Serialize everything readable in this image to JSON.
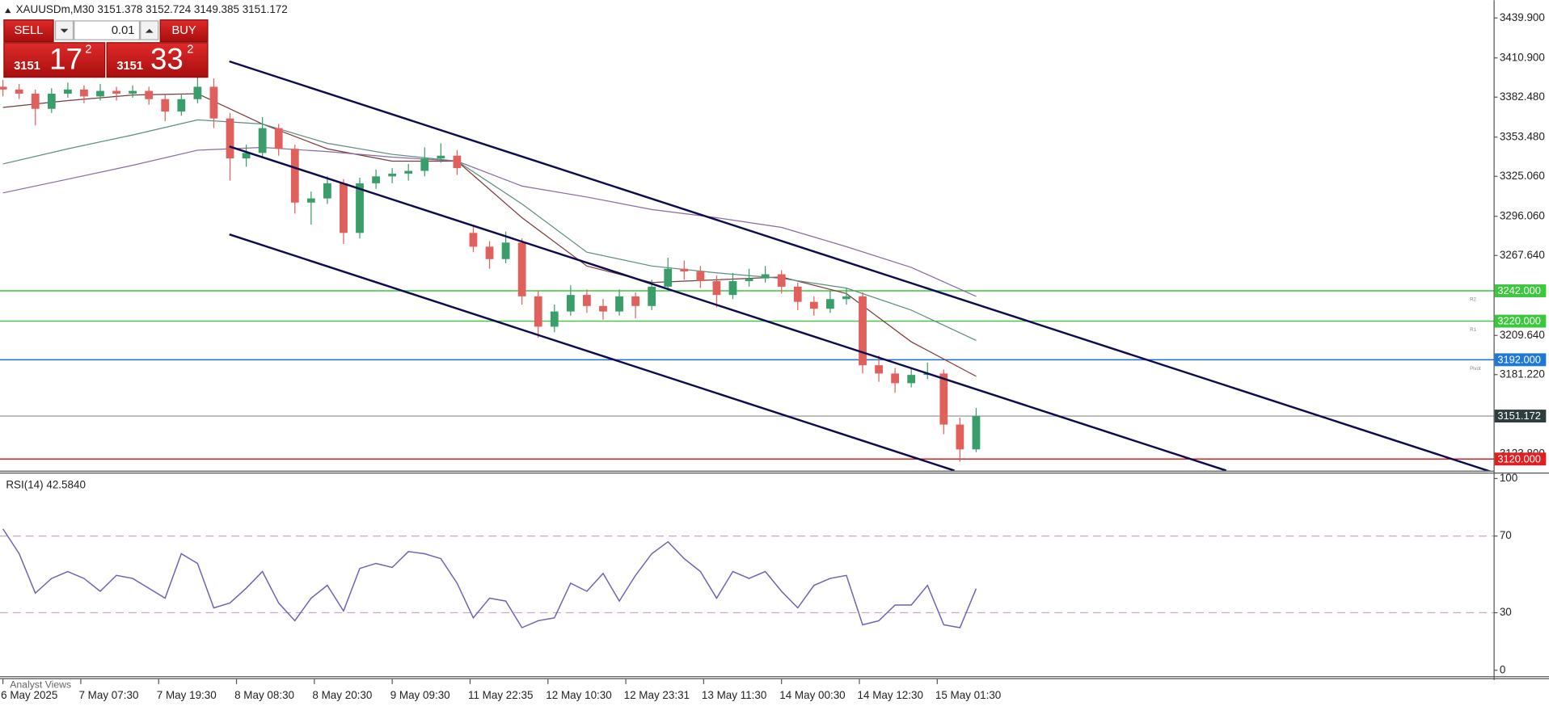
{
  "chart_data": [
    {
      "type": "candlestick",
      "title": "XAUUSDm,M30  3151.378 3152.724 3149.385 3151.172",
      "up_color": "#3a9e6a",
      "down_color": "#e0605c",
      "xlim": [
        -0.9,
        459.5
      ],
      "ylim": [
        3111.6,
        3452.8
      ],
      "yticks": [
        {
          "value": 3439.9,
          "label": "3439.900"
        },
        {
          "value": 3410.9,
          "label": "3410.900"
        },
        {
          "value": 3382.48,
          "label": "3382.480"
        },
        {
          "value": 3353.48,
          "label": "3353.480"
        },
        {
          "value": 3325.06,
          "label": "3325.060"
        },
        {
          "value": 3296.06,
          "label": "3296.060"
        },
        {
          "value": 3267.64,
          "label": "3267.640"
        },
        {
          "value": 3209.64,
          "label": "3209.640"
        },
        {
          "value": 3181.22,
          "label": "3181.220"
        },
        {
          "value": 3123.8,
          "label": "3123.800"
        }
      ],
      "x": [
        0,
        5,
        10,
        15,
        20,
        25,
        30,
        35,
        40,
        45,
        50,
        55,
        60,
        65,
        70,
        75,
        80,
        85,
        90,
        95,
        100,
        105,
        110,
        115,
        120,
        125,
        130,
        135,
        140,
        145,
        150,
        155,
        160,
        165,
        170,
        175,
        180,
        185,
        190,
        195,
        200,
        205,
        210,
        215,
        220,
        225,
        230,
        235,
        240,
        245,
        250,
        255,
        260,
        265,
        270,
        275,
        280,
        285,
        290,
        295,
        300
      ],
      "candles": [
        [
          3390,
          3395,
          3383,
          3388
        ],
        [
          3388,
          3392,
          3381,
          3385
        ],
        [
          3385,
          3388,
          3362,
          3374
        ],
        [
          3374,
          3389,
          3371,
          3385
        ],
        [
          3385,
          3393,
          3382,
          3388
        ],
        [
          3388,
          3391,
          3378,
          3383
        ],
        [
          3383,
          3392,
          3380,
          3387
        ],
        [
          3387,
          3390,
          3380,
          3385
        ],
        [
          3385,
          3391,
          3382,
          3387
        ],
        [
          3387,
          3390,
          3377,
          3381
        ],
        [
          3381,
          3384,
          3365,
          3372
        ],
        [
          3372,
          3385,
          3369,
          3381
        ],
        [
          3381,
          3397,
          3378,
          3390
        ],
        [
          3390,
          3396,
          3360,
          3367
        ],
        [
          3367,
          3371,
          3322,
          3338
        ],
        [
          3338,
          3348,
          3332,
          3342
        ],
        [
          3342,
          3368,
          3339,
          3360
        ],
        [
          3360,
          3363,
          3340,
          3345
        ],
        [
          3345,
          3348,
          3298,
          3306
        ],
        [
          3306,
          3314,
          3290,
          3309
        ],
        [
          3309,
          3325,
          3305,
          3320
        ],
        [
          3320,
          3323,
          3276,
          3284
        ],
        [
          3284,
          3324,
          3280,
          3320
        ],
        [
          3320,
          3330,
          3316,
          3325
        ],
        [
          3325,
          3331,
          3320,
          3327
        ],
        [
          3327,
          3334,
          3322,
          3329
        ],
        [
          3329,
          3346,
          3325,
          3338
        ],
        [
          3338,
          3349,
          3335,
          3340
        ],
        [
          3340,
          3344,
          3326,
          3331
        ],
        [
          3284,
          3290,
          3270,
          3274
        ],
        [
          3274,
          3278,
          3258,
          3265
        ],
        [
          3265,
          3285,
          3262,
          3277
        ],
        [
          3277,
          3280,
          3232,
          3238
        ],
        [
          3238,
          3242,
          3208,
          3216
        ],
        [
          3216,
          3232,
          3212,
          3227
        ],
        [
          3227,
          3246,
          3224,
          3239
        ],
        [
          3239,
          3243,
          3226,
          3231
        ],
        [
          3231,
          3236,
          3221,
          3227
        ],
        [
          3227,
          3243,
          3224,
          3238
        ],
        [
          3238,
          3241,
          3222,
          3231
        ],
        [
          3231,
          3250,
          3228,
          3245
        ],
        [
          3245,
          3266,
          3242,
          3258
        ],
        [
          3258,
          3264,
          3250,
          3256
        ],
        [
          3256,
          3260,
          3244,
          3249
        ],
        [
          3249,
          3253,
          3230,
          3239
        ],
        [
          3239,
          3255,
          3236,
          3249
        ],
        [
          3249,
          3258,
          3245,
          3251
        ],
        [
          3251,
          3260,
          3248,
          3254
        ],
        [
          3254,
          3257,
          3240,
          3245
        ],
        [
          3245,
          3248,
          3228,
          3234
        ],
        [
          3234,
          3238,
          3224,
          3229
        ],
        [
          3229,
          3242,
          3226,
          3236
        ],
        [
          3236,
          3244,
          3232,
          3238
        ],
        [
          3238,
          3241,
          3182,
          3188
        ],
        [
          3188,
          3195,
          3176,
          3182
        ],
        [
          3182,
          3186,
          3168,
          3175
        ],
        [
          3175,
          3186,
          3172,
          3181
        ],
        [
          3181,
          3190,
          3178,
          3182
        ],
        [
          3182,
          3185,
          3138,
          3145
        ],
        [
          3145,
          3150,
          3118,
          3127
        ],
        [
          3127,
          3157,
          3125,
          3151.172
        ]
      ],
      "moving_averages": [
        {
          "color": "#7a3b3b",
          "x": [
            0,
            20,
            40,
            60,
            80,
            100,
            120,
            140,
            160,
            180,
            200,
            220,
            240,
            260,
            280,
            300
          ],
          "values": [
            3375,
            3380,
            3384,
            3385,
            3363,
            3345,
            3336,
            3336,
            3295,
            3260,
            3248,
            3250,
            3252,
            3240,
            3205,
            3180
          ]
        },
        {
          "color": "#5f8c7f",
          "x": [
            0,
            20,
            40,
            60,
            80,
            100,
            120,
            140,
            160,
            180,
            200,
            220,
            240,
            260,
            280,
            300
          ],
          "values": [
            3334,
            3345,
            3355,
            3366,
            3363,
            3349,
            3341,
            3336,
            3305,
            3270,
            3260,
            3255,
            3251,
            3244,
            3228,
            3206
          ]
        },
        {
          "color": "#8a6aa0",
          "x": [
            0,
            20,
            40,
            60,
            80,
            100,
            120,
            140,
            160,
            180,
            200,
            220,
            240,
            260,
            280,
            300
          ],
          "values": [
            3313,
            3323,
            3333,
            3344,
            3346,
            3343,
            3339,
            3336,
            3318,
            3310,
            3301,
            3295,
            3288,
            3274,
            3259,
            3238
          ]
        }
      ],
      "trendline_color": "#0b0b4e",
      "trendlines": [
        {
          "x": [
            69.8,
            459.5
          ],
          "values": [
            3408.4,
            3110.2
          ]
        },
        {
          "x": [
            69.8,
            377.1
          ],
          "values": [
            3346.7,
            3111.6
          ]
        },
        {
          "x": [
            69.8,
            293.3
          ],
          "values": [
            3282.9,
            3111.6
          ]
        }
      ],
      "levels": [
        {
          "value": 3242,
          "label": "3242.000",
          "tag": "R2",
          "color": "#3cc83c",
          "label_color": "#3cc83c"
        },
        {
          "value": 3220,
          "label": "3220.000",
          "tag": "R1",
          "color": "#3cc83c",
          "label_color": "#3cc83c"
        },
        {
          "value": 3192,
          "label": "3192.000",
          "tag": "Pivot",
          "color": "#1f6fc4",
          "label_color": "#1f78d8"
        },
        {
          "value": 3151.172,
          "label": "3151.172",
          "color": "#a0a0a0",
          "label_color": "#2e3d3d"
        },
        {
          "value": 3120,
          "label": "3120.000",
          "color": "#e02020",
          "label_color": "#e02020"
        }
      ]
    },
    {
      "type": "line",
      "title": "RSI(14) 42.5840",
      "color": "#6f5fb5",
      "level_color": "#c8a8c8",
      "levels": [
        70,
        30
      ],
      "xlim": [
        -0.9,
        459.5
      ],
      "ylim": [
        -3.1,
        103.1
      ],
      "yticks": [
        100,
        70,
        30,
        0
      ],
      "xticks": [
        {
          "value": 0,
          "label": "6 May 2025"
        },
        {
          "value": 24,
          "label": "7 May 07:30"
        },
        {
          "value": 48,
          "label": "7 May 19:30"
        },
        {
          "value": 72,
          "label": "8 May 08:30"
        },
        {
          "value": 96,
          "label": "8 May 20:30"
        },
        {
          "value": 120,
          "label": "9 May 09:30"
        },
        {
          "value": 144,
          "label": "11 May 22:35"
        },
        {
          "value": 168,
          "label": "12 May 10:30"
        },
        {
          "value": 192,
          "label": "12 May 23:31"
        },
        {
          "value": 216,
          "label": "13 May 11:30"
        },
        {
          "value": 240,
          "label": "14 May 00:30"
        },
        {
          "value": 264,
          "label": "14 May 12:30"
        },
        {
          "value": 288,
          "label": "15 May 01:30"
        }
      ],
      "x": [
        0,
        5,
        10,
        15,
        20,
        25,
        30,
        35,
        40,
        45,
        50,
        55,
        60,
        65,
        70,
        75,
        80,
        85,
        90,
        95,
        100,
        105,
        110,
        115,
        120,
        125,
        130,
        135,
        140,
        145,
        150,
        155,
        160,
        165,
        170,
        175,
        180,
        185,
        190,
        195,
        200,
        205,
        210,
        215,
        220,
        225,
        230,
        235,
        240,
        245,
        250,
        255,
        260,
        265,
        270,
        275,
        280,
        285,
        290,
        295,
        300
      ],
      "values": [
        73.7,
        60.8,
        40.2,
        47.9,
        51.5,
        47.9,
        41.2,
        49.5,
        47.9,
        42.8,
        37.6,
        60.8,
        55.7,
        32.5,
        35.1,
        42.8,
        51.5,
        35.1,
        25.8,
        37.6,
        44.3,
        30.9,
        53.1,
        55.7,
        53.6,
        61.9,
        60.8,
        58.2,
        45.4,
        27.3,
        37.6,
        36.1,
        22.2,
        25.8,
        27.3,
        45.4,
        41.2,
        50.5,
        36.1,
        49.5,
        60.8,
        67.0,
        58.2,
        51.5,
        37.6,
        51.5,
        47.9,
        51.5,
        41.2,
        32.5,
        44.3,
        47.9,
        49.5,
        23.7,
        25.8,
        34.0,
        34.0,
        44.3,
        23.7,
        22.2,
        42.584
      ]
    }
  ],
  "trade_panel": {
    "sell": "SELL",
    "buy": "BUY",
    "lot": "0.01",
    "bid": {
      "big": "3151",
      "main": "17",
      "sup": "2"
    },
    "ask": {
      "big": "3151",
      "main": "33",
      "sup": "2"
    }
  },
  "tab": "Analyst Views"
}
